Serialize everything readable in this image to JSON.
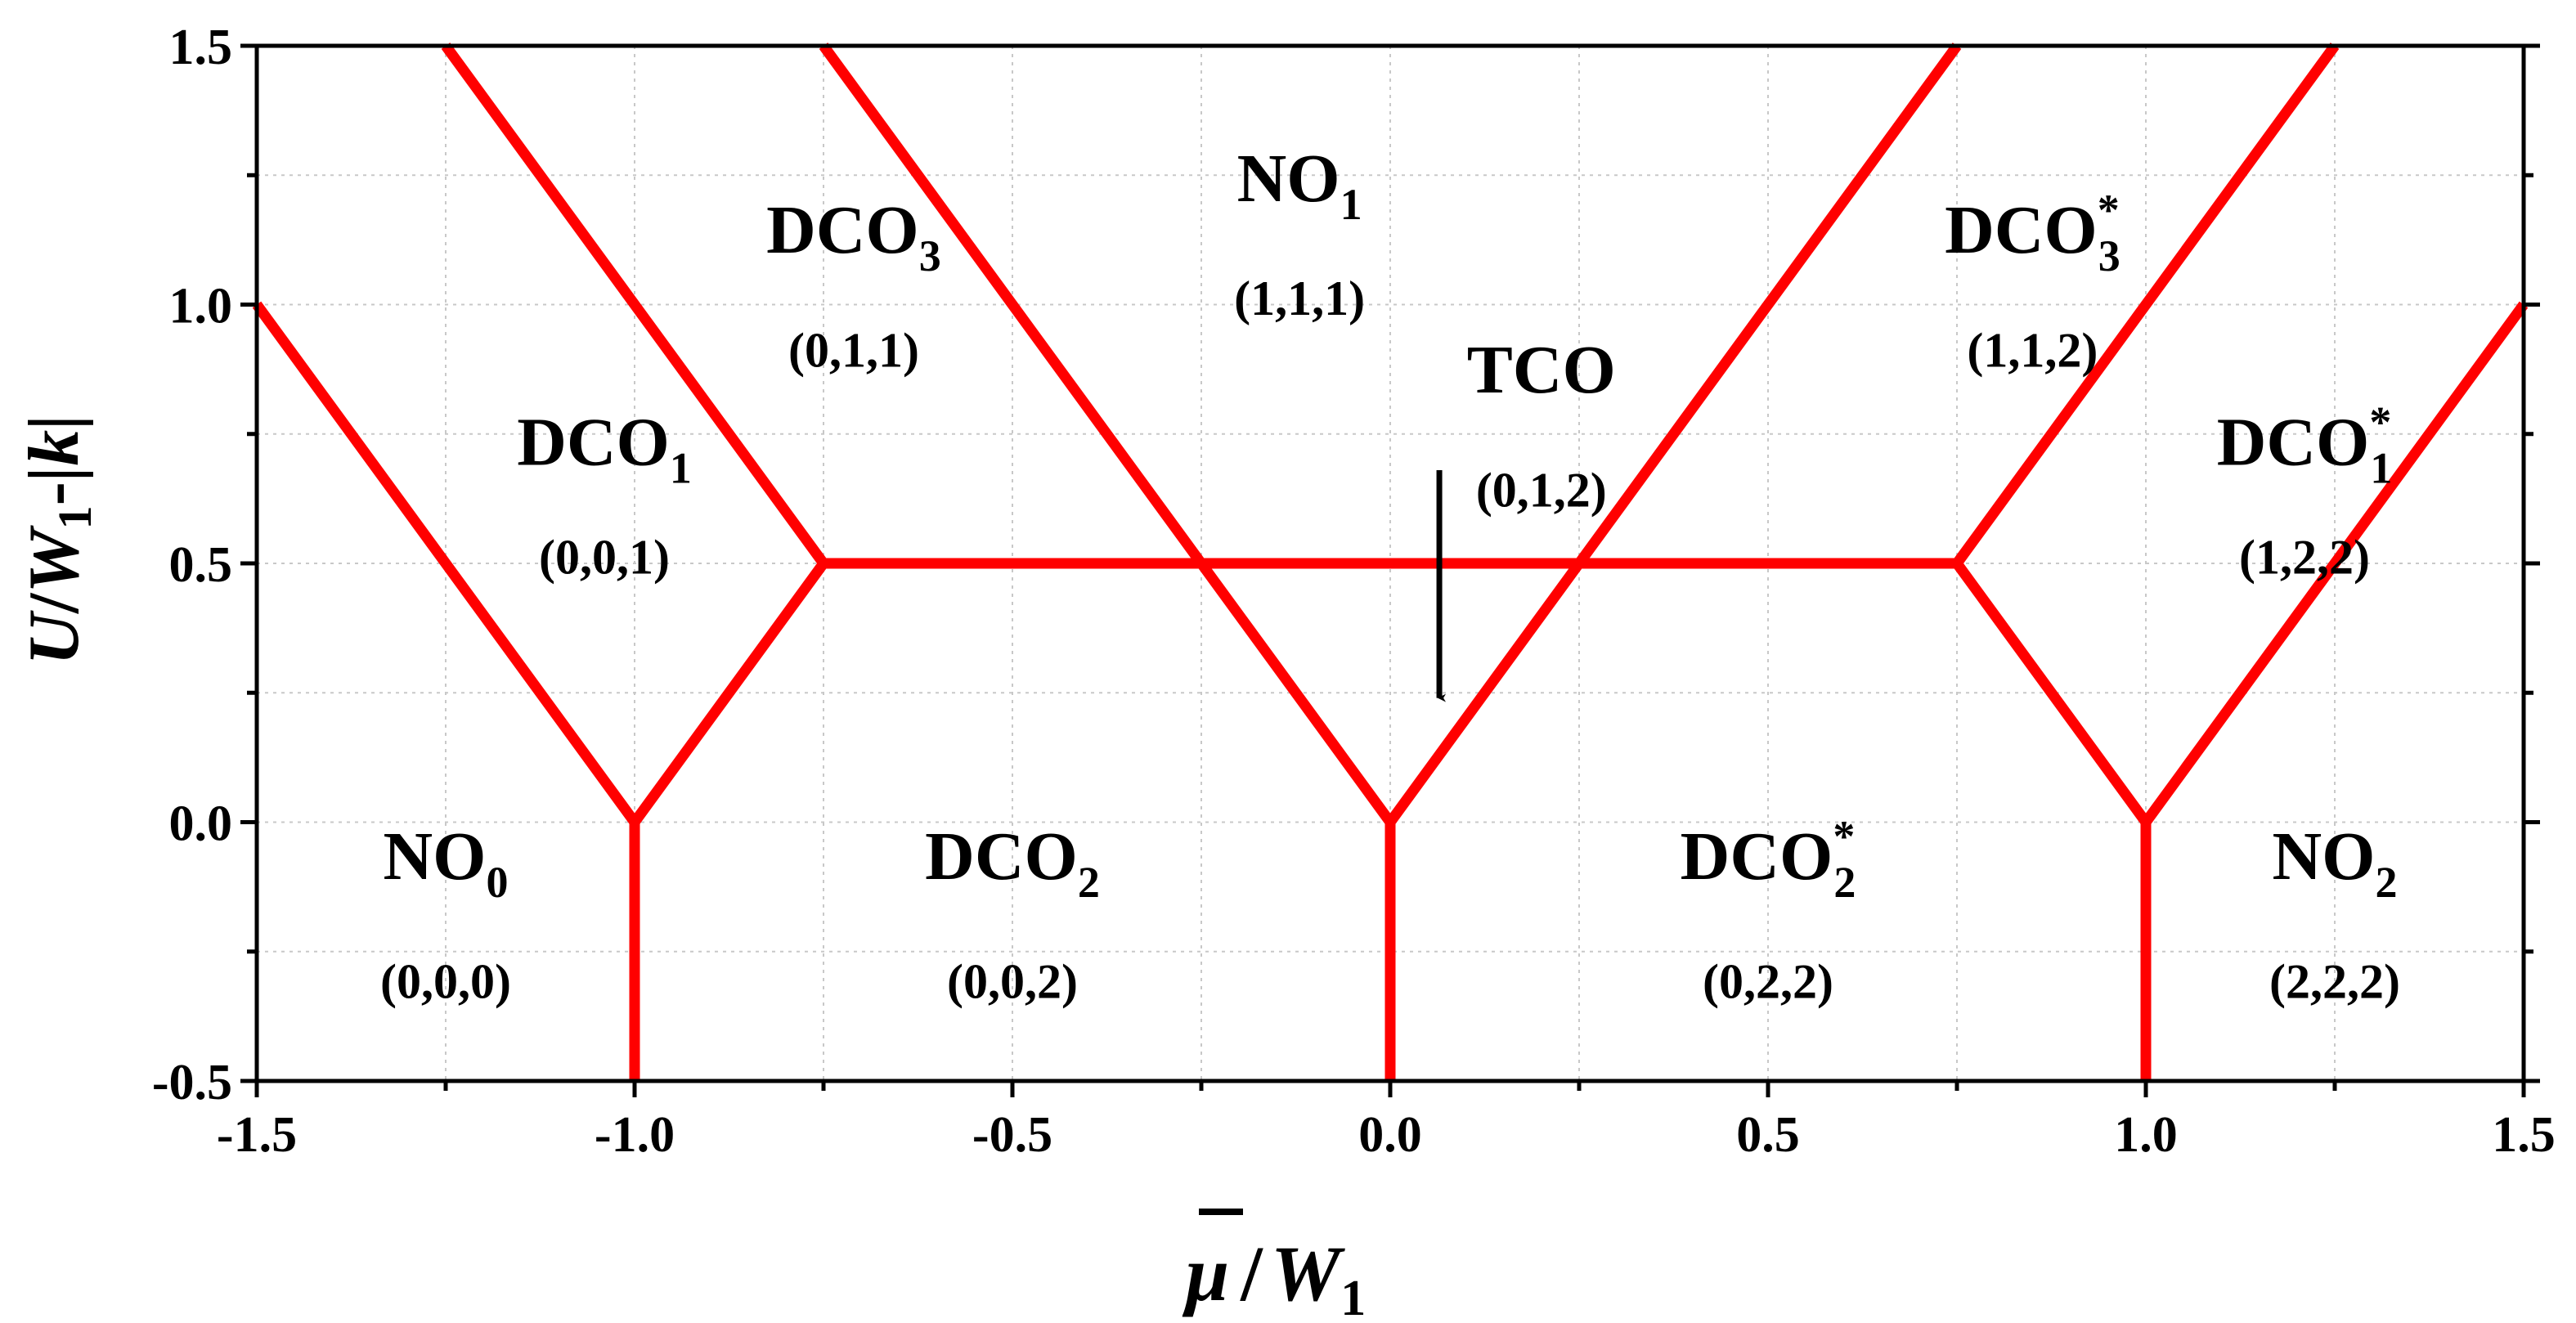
{
  "chart_data": {
    "type": "line",
    "title": "",
    "xlabel": {
      "symbol": "μ",
      "slash": "/",
      "w": "W",
      "sub": "1"
    },
    "ylabel": {
      "u": "U",
      "slash": "/",
      "w": "W",
      "sub": "1",
      "minus": "-",
      "k": "|k|"
    },
    "xlim": [
      -1.5,
      1.5
    ],
    "ylim": [
      -0.5,
      1.5
    ],
    "xticks": [
      -1.5,
      -1.0,
      -0.5,
      0.0,
      0.5,
      1.0,
      1.5
    ],
    "yticks": [
      -0.5,
      0.0,
      0.5,
      1.0,
      1.5
    ],
    "xtick_labels": [
      "-1.5",
      "-1.0",
      "-0.5",
      "0.0",
      "0.5",
      "1.0",
      "1.5"
    ],
    "ytick_labels": [
      "-0.5",
      "0.0",
      "0.5",
      "1.0",
      "1.5"
    ],
    "grid": true,
    "line_color": "#ff0000",
    "series": [
      {
        "name": "boundary-1",
        "points": [
          [
            -1.5,
            1.0
          ],
          [
            -1.0,
            0.0
          ]
        ]
      },
      {
        "name": "boundary-2",
        "points": [
          [
            -1.25,
            1.5
          ],
          [
            -0.75,
            0.5
          ]
        ]
      },
      {
        "name": "boundary-3",
        "points": [
          [
            -0.75,
            0.5
          ],
          [
            -1.0,
            0.0
          ]
        ]
      },
      {
        "name": "boundary-4",
        "points": [
          [
            -1.0,
            0.0
          ],
          [
            -1.0,
            -0.5
          ]
        ]
      },
      {
        "name": "boundary-5",
        "points": [
          [
            -0.75,
            0.5
          ],
          [
            0.75,
            0.5
          ]
        ]
      },
      {
        "name": "boundary-6",
        "points": [
          [
            -0.75,
            1.5
          ],
          [
            0.0,
            0.0
          ]
        ]
      },
      {
        "name": "boundary-7",
        "points": [
          [
            0.0,
            0.0
          ],
          [
            0.75,
            1.5
          ]
        ]
      },
      {
        "name": "boundary-8",
        "points": [
          [
            0.0,
            0.0
          ],
          [
            0.0,
            -0.5
          ]
        ]
      },
      {
        "name": "boundary-9",
        "points": [
          [
            0.75,
            0.5
          ],
          [
            1.25,
            1.5
          ]
        ]
      },
      {
        "name": "boundary-10",
        "points": [
          [
            0.75,
            0.5
          ],
          [
            1.0,
            0.0
          ]
        ]
      },
      {
        "name": "boundary-11",
        "points": [
          [
            1.0,
            0.0
          ],
          [
            1.5,
            1.0
          ]
        ]
      },
      {
        "name": "boundary-12",
        "points": [
          [
            1.0,
            0.0
          ],
          [
            1.0,
            -0.5
          ]
        ]
      }
    ],
    "regions": [
      {
        "base": "NO",
        "sub": "0",
        "sup": "",
        "occupation": "(0,0,0)",
        "x": -1.25,
        "y": -0.11,
        "occ_y": -0.34
      },
      {
        "base": "DCO",
        "sub": "2",
        "sup": "",
        "occupation": "(0,0,2)",
        "x": -0.5,
        "y": -0.11,
        "occ_y": -0.34
      },
      {
        "base": "DCO",
        "sub": "2",
        "sup": "*",
        "occupation": "(0,2,2)",
        "x": 0.5,
        "y": -0.11,
        "occ_y": -0.34
      },
      {
        "base": "NO",
        "sub": "2",
        "sup": "",
        "occupation": "(2,2,2)",
        "x": 1.25,
        "y": -0.11,
        "occ_y": -0.34
      },
      {
        "base": "DCO",
        "sub": "1",
        "sup": "",
        "occupation": "(0,0,1)",
        "x": -1.04,
        "y": 0.69,
        "occ_y": 0.48
      },
      {
        "base": "DCO",
        "sub": "3",
        "sup": "",
        "occupation": "(0,1,1)",
        "x": -0.71,
        "y": 1.1,
        "occ_y": 0.88
      },
      {
        "base": "NO",
        "sub": "1",
        "sup": "",
        "occupation": "(1,1,1)",
        "x": -0.12,
        "y": 1.2,
        "occ_y": 0.98
      },
      {
        "base": "TCO",
        "sub": "",
        "sup": "",
        "occupation": "(0,1,2)",
        "x": 0.2,
        "y": 0.83,
        "occ_y": 0.61
      },
      {
        "base": "DCO",
        "sub": "3",
        "sup": "*",
        "occupation": "(1,1,2)",
        "x": 0.85,
        "y": 1.1,
        "occ_y": 0.88
      },
      {
        "base": "DCO",
        "sub": "1",
        "sup": "*",
        "occupation": "(1,2,2)",
        "x": 1.21,
        "y": 0.69,
        "occ_y": 0.48
      }
    ],
    "annotations": [
      {
        "type": "arrow",
        "from": [
          0.065,
          0.68
        ],
        "to": [
          0.065,
          0.24
        ],
        "label": ""
      }
    ]
  }
}
